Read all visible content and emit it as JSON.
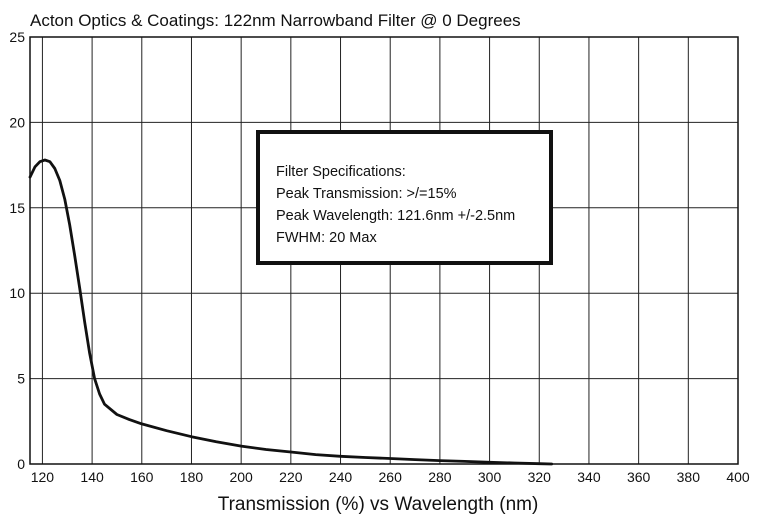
{
  "chart_data": {
    "type": "line",
    "title": "Acton Optics & Coatings: 122nm Narrowband Filter @ 0 Degrees",
    "xlabel": "Transmission (%) vs Wavelength (nm)",
    "ylabel": "",
    "xlim": [
      115,
      400
    ],
    "ylim": [
      0,
      25
    ],
    "xticks": [
      120,
      140,
      160,
      180,
      200,
      220,
      240,
      260,
      280,
      300,
      320,
      340,
      360,
      380,
      400
    ],
    "yticks": [
      0,
      5,
      10,
      15,
      20,
      25
    ],
    "grid": true,
    "line_color": "#111111",
    "series": [
      {
        "x": [
          115,
          117,
          119,
          121,
          123,
          125,
          127,
          129,
          131,
          133,
          135,
          137,
          139,
          141,
          143,
          145,
          150,
          155,
          160,
          170,
          180,
          190,
          200,
          210,
          220,
          230,
          240,
          250,
          260,
          270,
          280,
          290,
          300,
          310,
          320,
          325
        ],
        "y": [
          16.8,
          17.4,
          17.7,
          17.8,
          17.7,
          17.3,
          16.6,
          15.5,
          14.0,
          12.2,
          10.3,
          8.3,
          6.5,
          5.0,
          4.1,
          3.5,
          2.9,
          2.6,
          2.35,
          1.95,
          1.6,
          1.3,
          1.05,
          0.85,
          0.7,
          0.55,
          0.45,
          0.38,
          0.32,
          0.26,
          0.2,
          0.15,
          0.1,
          0.06,
          0.02,
          0.0
        ]
      }
    ],
    "annotation": {
      "lines": [
        "Filter Specifications:",
        "Peak Transmission: >/=15%",
        "Peak Wavelength: 121.6nm +/-2.5nm",
        "FWHM: 20 Max"
      ]
    }
  }
}
